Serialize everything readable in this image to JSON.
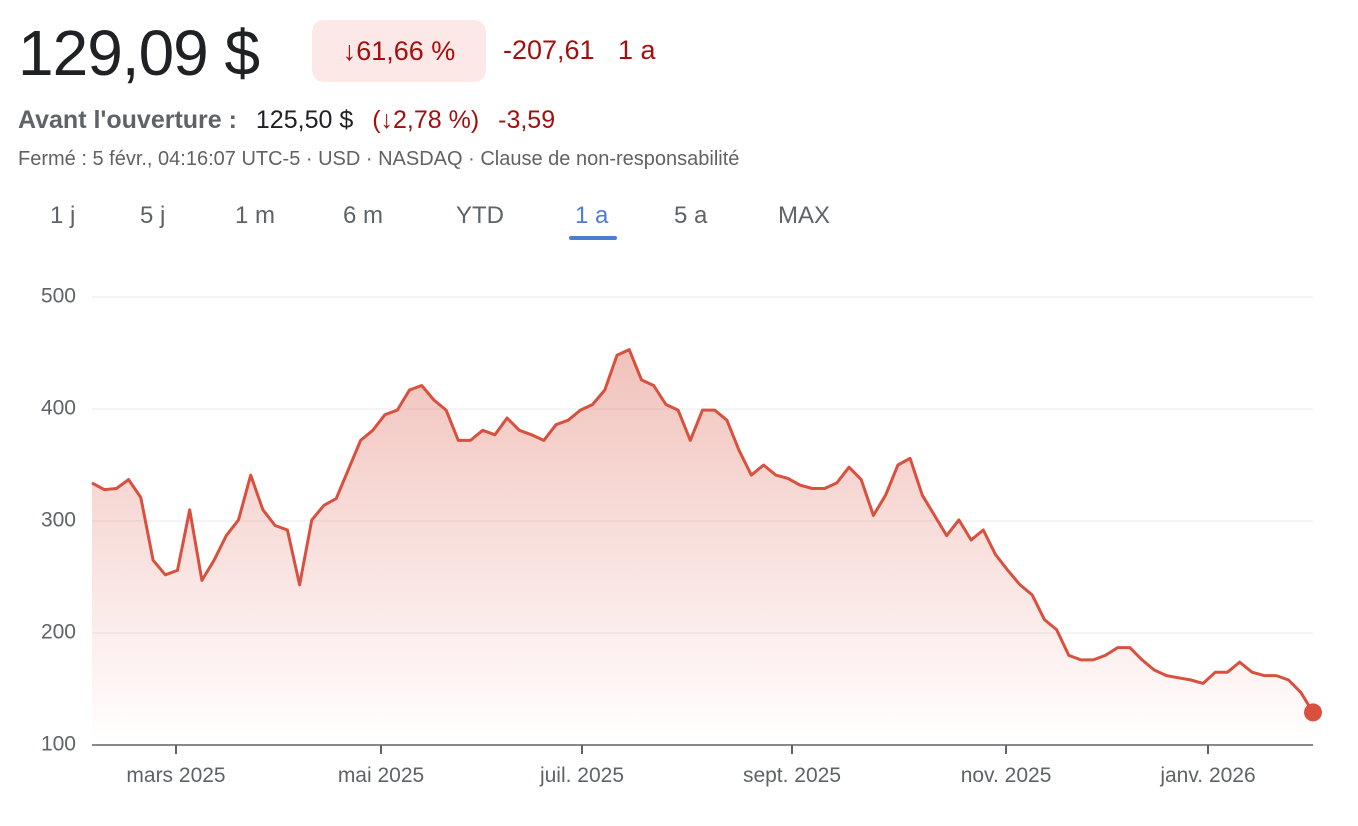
{
  "header": {
    "price": "129,09 $",
    "change_percent": "↓61,66 %",
    "change_value": "-207,61",
    "period": "1 a",
    "premarket_label": "Avant l'ouverture :",
    "premarket_price": "125,50 $",
    "premarket_percent": "(↓2,78 %)",
    "premarket_change": "-3,59",
    "info": "Fermé : 5 févr., 04:16:07 UTC-5 · USD · NASDAQ · Clause de non-responsabilité"
  },
  "tabs": {
    "items": [
      "1 j",
      "5 j",
      "1 m",
      "6 m",
      "YTD",
      "1 a",
      "5 a",
      "MAX"
    ],
    "selected": 5
  },
  "chart_data": {
    "type": "line",
    "color": "#d9503e",
    "grid": true,
    "values": [
      334,
      328,
      329,
      337,
      321,
      265,
      252,
      256,
      310,
      247,
      265,
      287,
      301,
      341,
      310,
      296,
      292,
      243,
      301,
      314,
      320,
      346,
      372,
      381,
      395,
      399,
      417,
      421,
      408,
      399,
      372,
      372,
      381,
      377,
      392,
      381,
      377,
      372,
      386,
      390,
      399,
      404,
      417,
      448,
      453,
      426,
      421,
      404,
      399,
      372,
      399,
      399,
      390,
      363,
      341,
      350,
      341,
      338,
      332,
      329,
      329,
      334,
      348,
      337,
      305,
      323,
      350,
      356,
      323,
      305,
      287,
      301,
      283,
      292,
      270,
      256,
      243,
      234,
      212,
      203,
      180,
      176,
      176,
      180,
      187,
      187,
      176,
      167,
      162,
      160,
      158,
      155,
      165,
      165,
      174,
      165,
      162,
      162,
      158,
      147,
      129.09
    ],
    "ylim": [
      100,
      500
    ],
    "yticks": [
      100,
      200,
      300,
      400,
      500
    ],
    "xticks": [
      {
        "value": 6.88,
        "label": "mars 2025"
      },
      {
        "value": 23.67,
        "label": "mai 2025"
      },
      {
        "value": 40.13,
        "label": "juil. 2025"
      },
      {
        "value": 57.33,
        "label": "sept. 2025"
      },
      {
        "value": 74.86,
        "label": "nov. 2025"
      },
      {
        "value": 91.4,
        "label": "janv. 2026"
      }
    ]
  }
}
